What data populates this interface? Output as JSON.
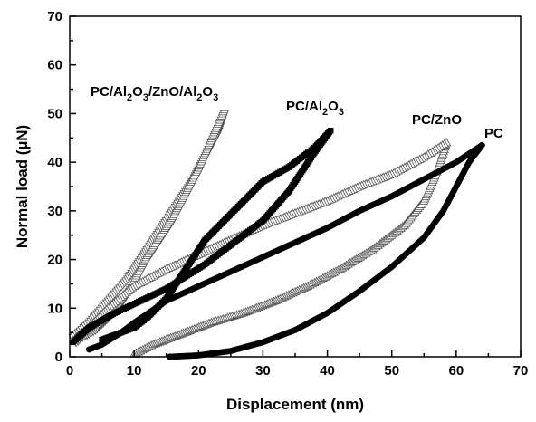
{
  "chart_data": {
    "type": "scatter",
    "title": "",
    "xlabel": "Displacement (nm)",
    "ylabel": "Normal load (µN)",
    "xlim": [
      0,
      70
    ],
    "ylim": [
      0,
      70
    ],
    "x_ticks": [
      0,
      10,
      20,
      30,
      40,
      50,
      60,
      70
    ],
    "y_ticks": [
      0,
      10,
      20,
      30,
      40,
      50,
      60,
      70
    ],
    "grid": false,
    "legend": "none",
    "series": [
      {
        "name": "PC",
        "marker": "filled-circle",
        "color": "#000000",
        "loading": [
          [
            15.5,
            0
          ],
          [
            20,
            0.3
          ],
          [
            25,
            1.2
          ],
          [
            30,
            3
          ],
          [
            35,
            5.5
          ],
          [
            40,
            9
          ],
          [
            45,
            13.5
          ],
          [
            50,
            18.5
          ],
          [
            55,
            24.5
          ],
          [
            58,
            30
          ],
          [
            60,
            35
          ],
          [
            62,
            40
          ],
          [
            64,
            43.5
          ]
        ],
        "unloading": [
          [
            64,
            43.5
          ],
          [
            60,
            40
          ],
          [
            55,
            36.5
          ],
          [
            50,
            33
          ],
          [
            45,
            30
          ],
          [
            40,
            26.5
          ],
          [
            35,
            23.5
          ],
          [
            30,
            20.5
          ],
          [
            25,
            17.5
          ],
          [
            20,
            14.5
          ],
          [
            15,
            11.5
          ],
          [
            10,
            7
          ],
          [
            8,
            5
          ],
          [
            5,
            2.5
          ],
          [
            3,
            1.5
          ]
        ]
      },
      {
        "name": "PC/ZnO",
        "marker": "open-triangle-up",
        "color": "#000000",
        "loading": [
          [
            10,
            0.5
          ],
          [
            13,
            2.5
          ],
          [
            17,
            4.5
          ],
          [
            22,
            7
          ],
          [
            27,
            9
          ],
          [
            32,
            11.5
          ],
          [
            37,
            14.5
          ],
          [
            42,
            18
          ],
          [
            47,
            22
          ],
          [
            52,
            27
          ],
          [
            55,
            32
          ],
          [
            57,
            38
          ],
          [
            58.5,
            44
          ]
        ],
        "unloading": [
          [
            58.5,
            44
          ],
          [
            55,
            41
          ],
          [
            50,
            37.5
          ],
          [
            45,
            35
          ],
          [
            40,
            32
          ],
          [
            35,
            29.5
          ],
          [
            30,
            27
          ],
          [
            25,
            24
          ],
          [
            20,
            21
          ],
          [
            15,
            18
          ],
          [
            10,
            14.5
          ],
          [
            6,
            10
          ],
          [
            3,
            6
          ],
          [
            1,
            4
          ]
        ]
      },
      {
        "name": "PC/Al2O3",
        "marker": "filled-square",
        "color": "#000000",
        "loading": [
          [
            0.5,
            3
          ],
          [
            3,
            6
          ],
          [
            7,
            9
          ],
          [
            11,
            11.5
          ],
          [
            15,
            14
          ],
          [
            18,
            16.5
          ],
          [
            21,
            19
          ],
          [
            24,
            22
          ],
          [
            27,
            25
          ],
          [
            30,
            28
          ],
          [
            32,
            31
          ],
          [
            34,
            34
          ],
          [
            36,
            38
          ],
          [
            38,
            42
          ],
          [
            40.5,
            46.5
          ]
        ],
        "unloading": [
          [
            40.5,
            46.5
          ],
          [
            38,
            43
          ],
          [
            36,
            41
          ],
          [
            34,
            39
          ],
          [
            30,
            36
          ],
          [
            27,
            32
          ],
          [
            24,
            28
          ],
          [
            21,
            24
          ],
          [
            19,
            20
          ],
          [
            17,
            16
          ],
          [
            15,
            12
          ],
          [
            12,
            8
          ],
          [
            10,
            6
          ],
          [
            7,
            4.5
          ],
          [
            5,
            3.5
          ]
        ]
      },
      {
        "name": "PC/Al2O3/ZnO/Al2O3",
        "marker": "open-triangle-down",
        "color": "#000000",
        "loading": [
          [
            0.5,
            4
          ],
          [
            3,
            7
          ],
          [
            5,
            10
          ],
          [
            7,
            13
          ],
          [
            9,
            16
          ],
          [
            11,
            20
          ],
          [
            13,
            24
          ],
          [
            15,
            28
          ],
          [
            17,
            32
          ],
          [
            19,
            36
          ],
          [
            21,
            41
          ],
          [
            23,
            46
          ],
          [
            24,
            50
          ]
        ],
        "unloading": [
          [
            24,
            50
          ],
          [
            22,
            44
          ],
          [
            20,
            38
          ],
          [
            18,
            33
          ],
          [
            16,
            28
          ],
          [
            14,
            24
          ],
          [
            12,
            20
          ],
          [
            10,
            15
          ],
          [
            8,
            11
          ],
          [
            6,
            8
          ],
          [
            4,
            5.5
          ],
          [
            2,
            4
          ],
          [
            1,
            3
          ]
        ]
      }
    ]
  },
  "labels": {
    "pc": "PC",
    "pc_zno": "PC/ZnO",
    "pc_al2o3": {
      "base": "PC/Al",
      "sub1": "2",
      "mid1": "O",
      "sub2": "3"
    },
    "multilayer": {
      "base": "PC/Al",
      "sub1": "2",
      "mid1": "O",
      "sub2": "3",
      "mid2": "/ZnO/Al",
      "sub3": "2",
      "mid3": "O",
      "sub4": "3"
    }
  }
}
